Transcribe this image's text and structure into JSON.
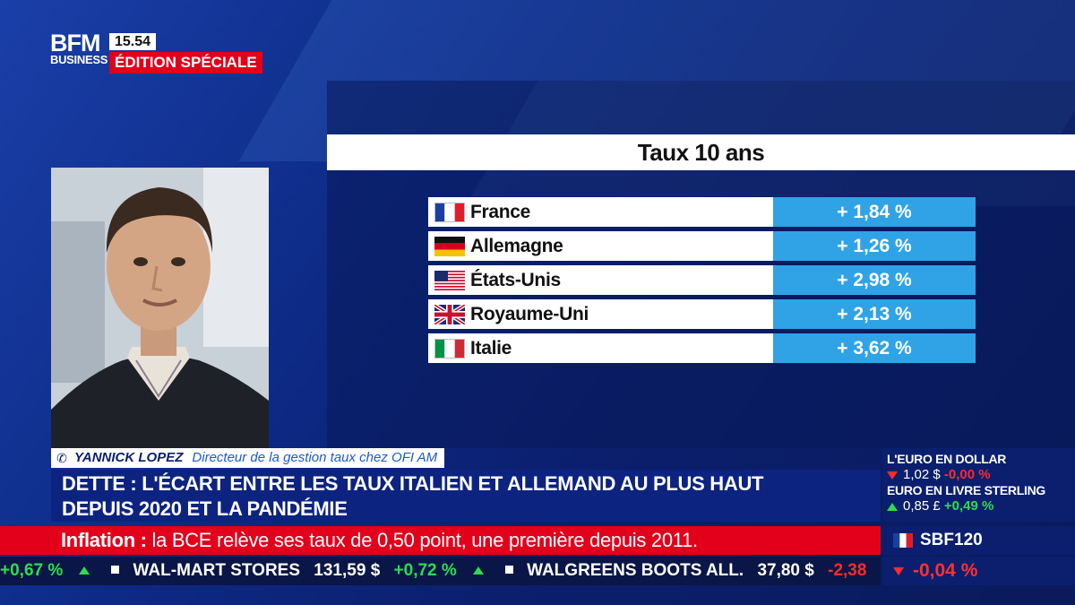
{
  "channel": {
    "logo_top": "BFM",
    "logo_bottom": "BUSINESS",
    "time": "15.54",
    "banner": "ÉDITION SPÉCIALE"
  },
  "table": {
    "title": "Taux 10 ans",
    "rows": [
      {
        "country": "France",
        "value": "+ 1,84 %",
        "flag": "fr-flag"
      },
      {
        "country": "Allemagne",
        "value": "+ 1,26 %",
        "flag": "de-flag"
      },
      {
        "country": "États-Unis",
        "value": "+ 2,98 %",
        "flag": "us-flag"
      },
      {
        "country": "Royaume-Uni",
        "value": "+ 2,13 %",
        "flag": "uk-flag"
      },
      {
        "country": "Italie",
        "value": "+ 3,62 %",
        "flag": "it-flag"
      }
    ]
  },
  "speaker": {
    "name": "YANNICK LOPEZ",
    "role": "Directeur de la gestion taux chez OFI AM"
  },
  "headline": {
    "line1": "DETTE : L'ÉCART ENTRE LES TAUX ITALIEN ET ALLEMAND AU PLUS HAUT",
    "line2": "DEPUIS 2020 ET LA PANDÉMIE"
  },
  "news_ticker": {
    "label": "Inflation :",
    "text": " la BCE relève ses taux de 0,50 point, une première depuis 2011."
  },
  "stock_ticker": {
    "lead_change": "+0,67 %",
    "items": [
      {
        "name": "WAL-MART STORES",
        "price": "131,59 $",
        "change": "+0,72 %"
      },
      {
        "name": "WALGREENS BOOTS ALL.",
        "price": "37,80 $",
        "change": "-2,38"
      }
    ]
  },
  "markets": {
    "eur_usd_label": "L'EURO EN DOLLAR",
    "eur_usd_value": "1,02 $",
    "eur_usd_change": "-0,00 %",
    "eur_gbp_label": "EURO EN LIVRE STERLING",
    "eur_gbp_value": "0,85 £",
    "eur_gbp_change": "+0,49 %",
    "index_name": "SBF120",
    "index_change": "-0,04 %"
  },
  "colors": {
    "accent_red": "#e3001b",
    "value_blue": "#2fa3e6",
    "navy": "#0b1f6e",
    "up_green": "#2ddc50"
  }
}
